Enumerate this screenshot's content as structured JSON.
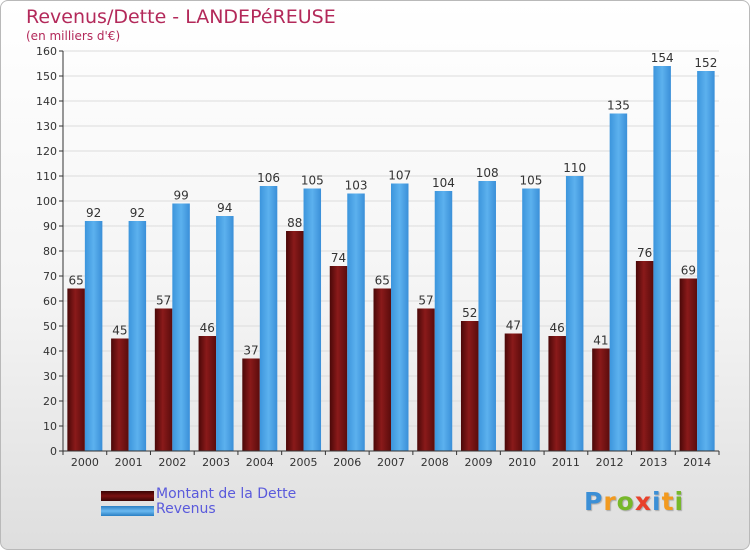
{
  "title": "Revenus/Dette - LANDEPéREUSE",
  "subtitle": "(en milliers d'€)",
  "logo": {
    "letters": [
      "P",
      "r",
      "o",
      "x",
      "i",
      "t",
      "i"
    ],
    "colors": [
      "#3b8fd6",
      "#f29a1f",
      "#77b82a",
      "#e8412b",
      "#3b8fd6",
      "#f29a1f",
      "#77b82a"
    ]
  },
  "colors": {
    "dette": "#7a1212",
    "revenus": "#4aa3e6",
    "axis": "#333333",
    "grid": "#dcdcdc"
  },
  "chart_data": {
    "type": "bar",
    "categories": [
      "2000",
      "2001",
      "2002",
      "2003",
      "2004",
      "2005",
      "2006",
      "2007",
      "2008",
      "2009",
      "2010",
      "2011",
      "2012",
      "2013",
      "2014"
    ],
    "series": [
      {
        "name": "Montant de la Dette",
        "values": [
          65,
          45,
          57,
          46,
          37,
          88,
          74,
          65,
          57,
          52,
          47,
          46,
          41,
          76,
          69
        ]
      },
      {
        "name": "Revenus",
        "values": [
          92,
          92,
          99,
          94,
          106,
          105,
          103,
          107,
          104,
          108,
          105,
          110,
          135,
          154,
          152
        ]
      }
    ],
    "ylim": [
      0,
      160
    ],
    "ytick_step": 10,
    "yticks": [
      "0",
      "10",
      "20",
      "30",
      "40",
      "50",
      "60",
      "70",
      "80",
      "90",
      "100",
      "110",
      "120",
      "130",
      "140",
      "150",
      "160"
    ],
    "grid": true,
    "legend": "bottom-left"
  }
}
